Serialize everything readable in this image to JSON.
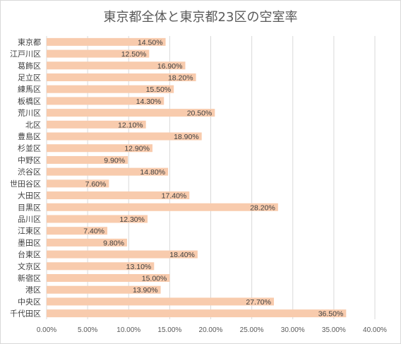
{
  "chart_data": {
    "type": "bar",
    "orientation": "horizontal",
    "title": "東京都全体と東京都23区の空室率",
    "xlabel": "",
    "ylabel": "",
    "categories": [
      "東京都",
      "江戸川区",
      "葛飾区",
      "足立区",
      "練馬区",
      "板橋区",
      "荒川区",
      "北区",
      "豊島区",
      "杉並区",
      "中野区",
      "渋谷区",
      "世田谷区",
      "大田区",
      "目黒区",
      "品川区",
      "江東区",
      "墨田区",
      "台東区",
      "文京区",
      "新宿区",
      "港区",
      "中央区",
      "千代田区"
    ],
    "values": [
      14.5,
      12.5,
      16.9,
      18.2,
      15.5,
      14.3,
      20.5,
      12.1,
      18.9,
      12.9,
      9.9,
      14.8,
      7.6,
      17.4,
      28.2,
      12.3,
      7.4,
      9.8,
      18.4,
      13.1,
      15.0,
      13.9,
      27.7,
      36.5
    ],
    "data_labels": [
      "14.50%",
      "12.50%",
      "16.90%",
      "18.20%",
      "15.50%",
      "14.30%",
      "20.50%",
      "12.10%",
      "18.90%",
      "12.90%",
      "9.90%",
      "14.80%",
      "7.60%",
      "17.40%",
      "28.20%",
      "12.30%",
      "7.40%",
      "9.80%",
      "18.40%",
      "13.10%",
      "15.00%",
      "13.90%",
      "27.70%",
      "36.50%"
    ],
    "xlim": [
      0,
      40
    ],
    "x_ticks": [
      "0.00%",
      "5.00%",
      "10.00%",
      "15.00%",
      "20.00%",
      "25.00%",
      "30.00%",
      "35.00%",
      "40.00%"
    ],
    "grid": "vertical",
    "legend": "none",
    "colors": {
      "bar": "#f8cbad",
      "grid": "#d9d9d9",
      "text": "#404040",
      "title": "#595959"
    }
  }
}
